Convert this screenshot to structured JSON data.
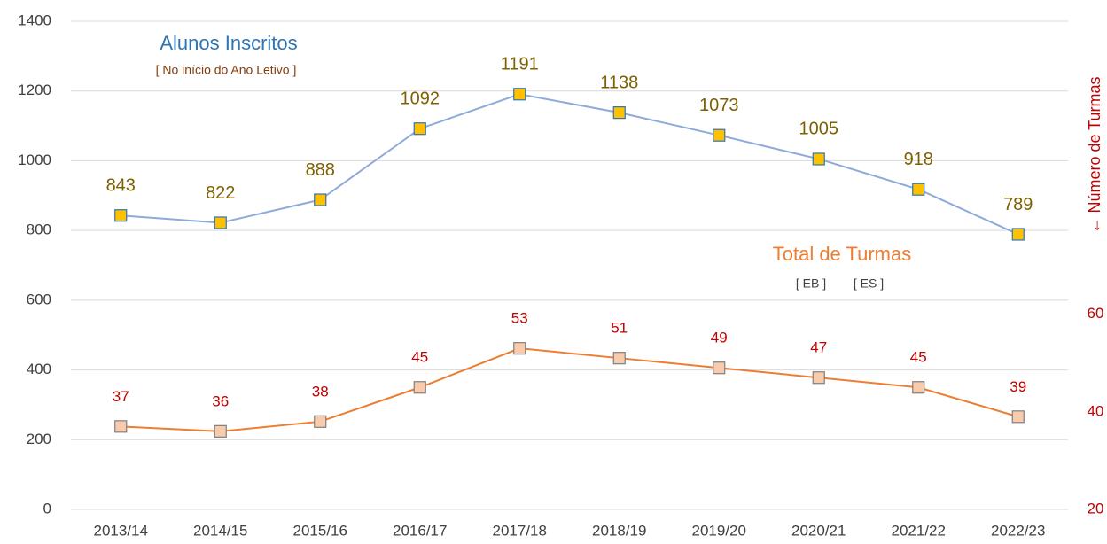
{
  "chart_data": {
    "type": "line",
    "categories": [
      "2013/14",
      "2014/15",
      "2015/16",
      "2016/17",
      "2017/18",
      "2018/19",
      "2019/20",
      "2020/21",
      "2021/22",
      "2022/23"
    ],
    "series": [
      {
        "name": "Alunos Inscritos",
        "color": "#8eaadb",
        "marker_color": "#ffc000",
        "marker_edge": "#2e75b6",
        "label_color": "#7f6000",
        "values": [
          843,
          822,
          888,
          1092,
          1191,
          1138,
          1073,
          1005,
          918,
          789
        ]
      },
      {
        "name": "Total de Turmas",
        "color": "#ed7d31",
        "marker_color": "#f8cbad",
        "marker_edge": "#7f7f7f",
        "label_color": "#c00000",
        "axis": "y2",
        "values": [
          37,
          36,
          38,
          45,
          53,
          51,
          49,
          47,
          45,
          39
        ]
      }
    ],
    "ylim": [
      0,
      1400
    ],
    "yticks": [
      0,
      200,
      400,
      600,
      800,
      1000,
      1200,
      1400
    ],
    "y2lim": [
      20,
      120
    ],
    "y2ticks": [
      20,
      40,
      60
    ],
    "y2label": "← Número de Turmas",
    "annotations": [
      "[ No início do Ano Letivo ]",
      "[ EB ]",
      "[ ES ]"
    ],
    "grid": true
  }
}
